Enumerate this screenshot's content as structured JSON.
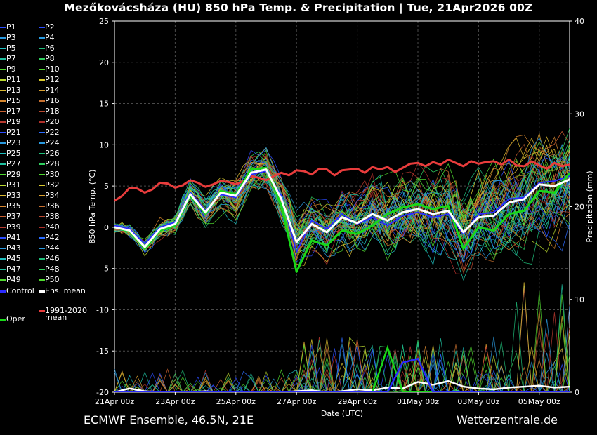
{
  "title": "Mezőkovácsháza  (HU)  850 hPa Temp. & Precipitation | Tue, 21Apr2026 00Z",
  "footer": {
    "left": "ECMWF Ensemble, 46.5N, 21E",
    "right": "Wetterzentrale.de"
  },
  "colors": {
    "background": "#000000",
    "control": "#2b2bff",
    "ens_mean": "#ffffff",
    "climate_mean": "#e83c3c",
    "oper": "#18d818"
  },
  "legend": {
    "members": [
      "P1",
      "P2",
      "P3",
      "P4",
      "P5",
      "P6",
      "P7",
      "P8",
      "P9",
      "P10",
      "P11",
      "P12",
      "P13",
      "P14",
      "P15",
      "P16",
      "P17",
      "P18",
      "P19",
      "P20",
      "P21",
      "P22",
      "P23",
      "P24",
      "P25",
      "P26",
      "P27",
      "P28",
      "P29",
      "P30",
      "P31",
      "P32",
      "P33",
      "P34",
      "P35",
      "P36",
      "P37",
      "P38",
      "P39",
      "P40",
      "P41",
      "P42",
      "P43",
      "P44",
      "P45",
      "P46",
      "P47",
      "P48",
      "P49",
      "P50"
    ],
    "member_colors": [
      "#2b4cff",
      "#2b4cff",
      "#2a9adf",
      "#2a9adf",
      "#1fc0c0",
      "#1fbf7a",
      "#1fc0a0",
      "#2fcf5f",
      "#4fd82f",
      "#4fd82f",
      "#b8d82f",
      "#d8c82f",
      "#d8b82f",
      "#d89f2f",
      "#d8882f",
      "#c8702f",
      "#c85f2f",
      "#b8482f",
      "#b83a2f",
      "#b0302a",
      "#2b4cff",
      "#2b6cff",
      "#2a9adf",
      "#2a9adf",
      "#1fc0c0",
      "#1fbf7a",
      "#1fc0a0",
      "#2fcf5f",
      "#4fd82f",
      "#4fd82f",
      "#b8d82f",
      "#d8c82f",
      "#d8b82f",
      "#d89f2f",
      "#d8882f",
      "#c8702f",
      "#c85f2f",
      "#b8482f",
      "#b83a2f",
      "#b0302a",
      "#2b4cff",
      "#2b6cff",
      "#2a9adf",
      "#2a9adf",
      "#1fc0c0",
      "#1fbf7a",
      "#1fc0a0",
      "#2fcf5f",
      "#4fd82f",
      "#4fd82f"
    ],
    "control": "Control",
    "ens_mean": "Ens. mean",
    "climate_mean_line1": "1991-2020",
    "climate_mean_line2": "mean",
    "oper": "Oper"
  },
  "chart_data": {
    "type": "line",
    "xlabel": "Date (UTC)",
    "ylabel": "850 hPa Temp. (°C)",
    "y2label": "Precipitation (mm)",
    "x_ticks": [
      "21Apr 00z",
      "23Apr 00z",
      "25Apr 00z",
      "27Apr 00z",
      "29Apr 00z",
      "01May 00z",
      "03May 00z",
      "05May 00z"
    ],
    "x_tick_days": [
      0,
      2,
      4,
      6,
      8,
      10,
      12,
      14
    ],
    "x_range_days": [
      0,
      15
    ],
    "ylim": [
      -20,
      25
    ],
    "y_ticks": [
      -20,
      -15,
      -10,
      -5,
      0,
      5,
      10,
      15,
      20,
      25
    ],
    "y2lim": [
      0,
      40
    ],
    "y2_ticks": [
      0,
      10,
      20,
      30,
      40
    ],
    "grid": true,
    "series": [
      {
        "name": "1991-2020 mean",
        "role": "climate",
        "x": [
          0,
          0.25,
          0.5,
          0.75,
          1,
          1.25,
          1.5,
          1.75,
          2,
          2.25,
          2.5,
          2.75,
          3,
          3.25,
          3.5,
          3.75,
          4,
          4.25,
          4.5,
          4.75,
          5,
          5.25,
          5.5,
          5.75,
          6,
          6.25,
          6.5,
          6.75,
          7,
          7.25,
          7.5,
          7.75,
          8,
          8.25,
          8.5,
          8.75,
          9,
          9.25,
          9.5,
          9.75,
          10,
          10.25,
          10.5,
          10.75,
          11,
          11.25,
          11.5,
          11.75,
          12,
          12.25,
          12.5,
          12.75,
          13,
          13.25,
          13.5,
          13.75,
          14,
          14.25,
          14.5,
          14.75,
          15
        ],
        "y": [
          3.2,
          3.8,
          4.8,
          4.7,
          4.2,
          4.6,
          5.4,
          5.3,
          4.8,
          5.1,
          5.7,
          5.4,
          4.9,
          5.2,
          5.6,
          5.5,
          5.2,
          5.6,
          6.2,
          6.0,
          5.7,
          6.2,
          6.6,
          6.3,
          6.9,
          6.8,
          6.4,
          7.1,
          7.0,
          6.3,
          6.9,
          7.0,
          7.1,
          6.6,
          7.3,
          7.0,
          7.3,
          6.7,
          7.2,
          7.7,
          7.8,
          7.4,
          7.9,
          7.6,
          8.2,
          7.8,
          7.4,
          8.0,
          7.7,
          7.9,
          8.0,
          7.6,
          8.2,
          7.5,
          7.4,
          8.0,
          7.5,
          7.1,
          7.8,
          7.4,
          7.6
        ]
      },
      {
        "name": "Ens. mean",
        "role": "mean",
        "x": [
          0,
          0.5,
          1,
          1.5,
          2,
          2.5,
          3,
          3.5,
          4,
          4.5,
          5,
          5.5,
          6,
          6.5,
          7,
          7.5,
          8,
          8.5,
          9,
          9.5,
          10,
          10.5,
          11,
          11.5,
          12,
          12.5,
          13,
          13.5,
          14,
          14.5,
          15
        ],
        "y": [
          0.0,
          -0.4,
          -2.4,
          -0.2,
          0.4,
          4.0,
          1.8,
          4.2,
          3.8,
          6.6,
          7.0,
          3.4,
          -1.8,
          0.4,
          -0.6,
          1.2,
          0.5,
          1.6,
          0.8,
          1.8,
          2.2,
          1.6,
          2.0,
          -0.6,
          1.2,
          1.4,
          3.0,
          3.4,
          5.2,
          5.0,
          5.8
        ]
      },
      {
        "name": "Oper",
        "role": "oper",
        "x": [
          0,
          0.5,
          1,
          1.5,
          2,
          2.5,
          3,
          3.5,
          4,
          4.5,
          5,
          5.5,
          6,
          6.5,
          7,
          7.5,
          8,
          8.5,
          9,
          9.5,
          10,
          10.5,
          11,
          11.5,
          12,
          12.5,
          13,
          13.5,
          14,
          14.5,
          15
        ],
        "y": [
          0.0,
          -0.5,
          -2.6,
          -0.4,
          0.2,
          3.8,
          1.6,
          4.4,
          4.0,
          7.0,
          7.2,
          2.6,
          -5.4,
          -1.6,
          -2.2,
          -0.4,
          -0.8,
          0.2,
          1.6,
          2.4,
          2.8,
          2.2,
          2.6,
          -2.6,
          0.0,
          -0.4,
          1.6,
          2.0,
          4.4,
          4.2,
          6.6
        ]
      },
      {
        "name": "Control",
        "role": "control",
        "x": [
          0,
          0.5,
          1,
          1.5,
          2,
          2.5,
          3,
          3.5,
          4,
          4.5,
          5,
          5.5,
          6,
          6.5,
          7,
          7.5,
          8,
          8.5,
          9,
          9.5,
          10,
          10.5,
          11,
          11.5,
          12,
          12.5,
          13,
          13.5,
          14,
          14.5,
          15
        ],
        "y": [
          0.2,
          -0.2,
          -2.0,
          0.0,
          0.6,
          4.2,
          2.0,
          4.0,
          3.6,
          6.4,
          6.8,
          3.8,
          -3.0,
          0.8,
          -0.2,
          1.6,
          0.4,
          1.2,
          0.2,
          1.4,
          1.8,
          1.2,
          1.6,
          -0.8,
          1.6,
          1.8,
          3.4,
          3.6,
          5.4,
          5.6,
          6.2
        ]
      }
    ],
    "precip_series": [
      {
        "name": "Ens. mean",
        "role": "mean",
        "x": [
          0,
          0.5,
          1,
          1.5,
          2,
          2.5,
          3,
          3.5,
          4,
          4.5,
          5,
          5.5,
          6,
          6.5,
          7,
          7.5,
          8,
          8.5,
          9,
          9.5,
          10,
          10.5,
          11,
          11.5,
          12,
          12.5,
          13,
          13.5,
          14,
          14.5,
          15
        ],
        "y": [
          0,
          0.4,
          0.1,
          0,
          0,
          0,
          0.1,
          0,
          0,
          0,
          0,
          0,
          0.1,
          0.2,
          0,
          0.1,
          0.3,
          0.2,
          0.5,
          0.4,
          1.1,
          0.8,
          1.2,
          0.6,
          0.4,
          0.3,
          0.5,
          0.6,
          0.7,
          0.5,
          0.6
        ]
      },
      {
        "name": "Oper",
        "role": "oper",
        "x": [
          0,
          0.5,
          1,
          1.5,
          2,
          2.5,
          3,
          3.5,
          4,
          4.5,
          5,
          5.5,
          6,
          6.5,
          7,
          7.5,
          8,
          8.5,
          9,
          9.5,
          10,
          10.5,
          11,
          11.5,
          12,
          12.5,
          13,
          13.5,
          14,
          14.5,
          15
        ],
        "y": [
          0,
          0,
          0,
          0,
          0,
          0,
          0,
          0,
          0,
          0,
          0,
          0,
          0,
          0,
          0,
          0,
          0,
          0,
          4.8,
          0,
          0,
          0,
          0,
          0,
          0,
          0,
          0,
          0,
          0,
          0,
          0
        ]
      },
      {
        "name": "Control",
        "role": "control",
        "x": [
          0,
          0.5,
          1,
          1.5,
          2,
          2.5,
          3,
          3.5,
          4,
          4.5,
          5,
          5.5,
          6,
          6.5,
          7,
          7.5,
          8,
          8.5,
          9,
          9.5,
          10,
          10.5,
          11,
          11.5,
          12,
          12.5,
          13,
          13.5,
          14,
          14.5,
          15
        ],
        "y": [
          0,
          0,
          0,
          0,
          0,
          0,
          0,
          0,
          0,
          0,
          0,
          0,
          0,
          0,
          0,
          0,
          0,
          0,
          0,
          3.2,
          3.6,
          0,
          0,
          0,
          0,
          0,
          0,
          0,
          0,
          0,
          0
        ]
      }
    ]
  }
}
